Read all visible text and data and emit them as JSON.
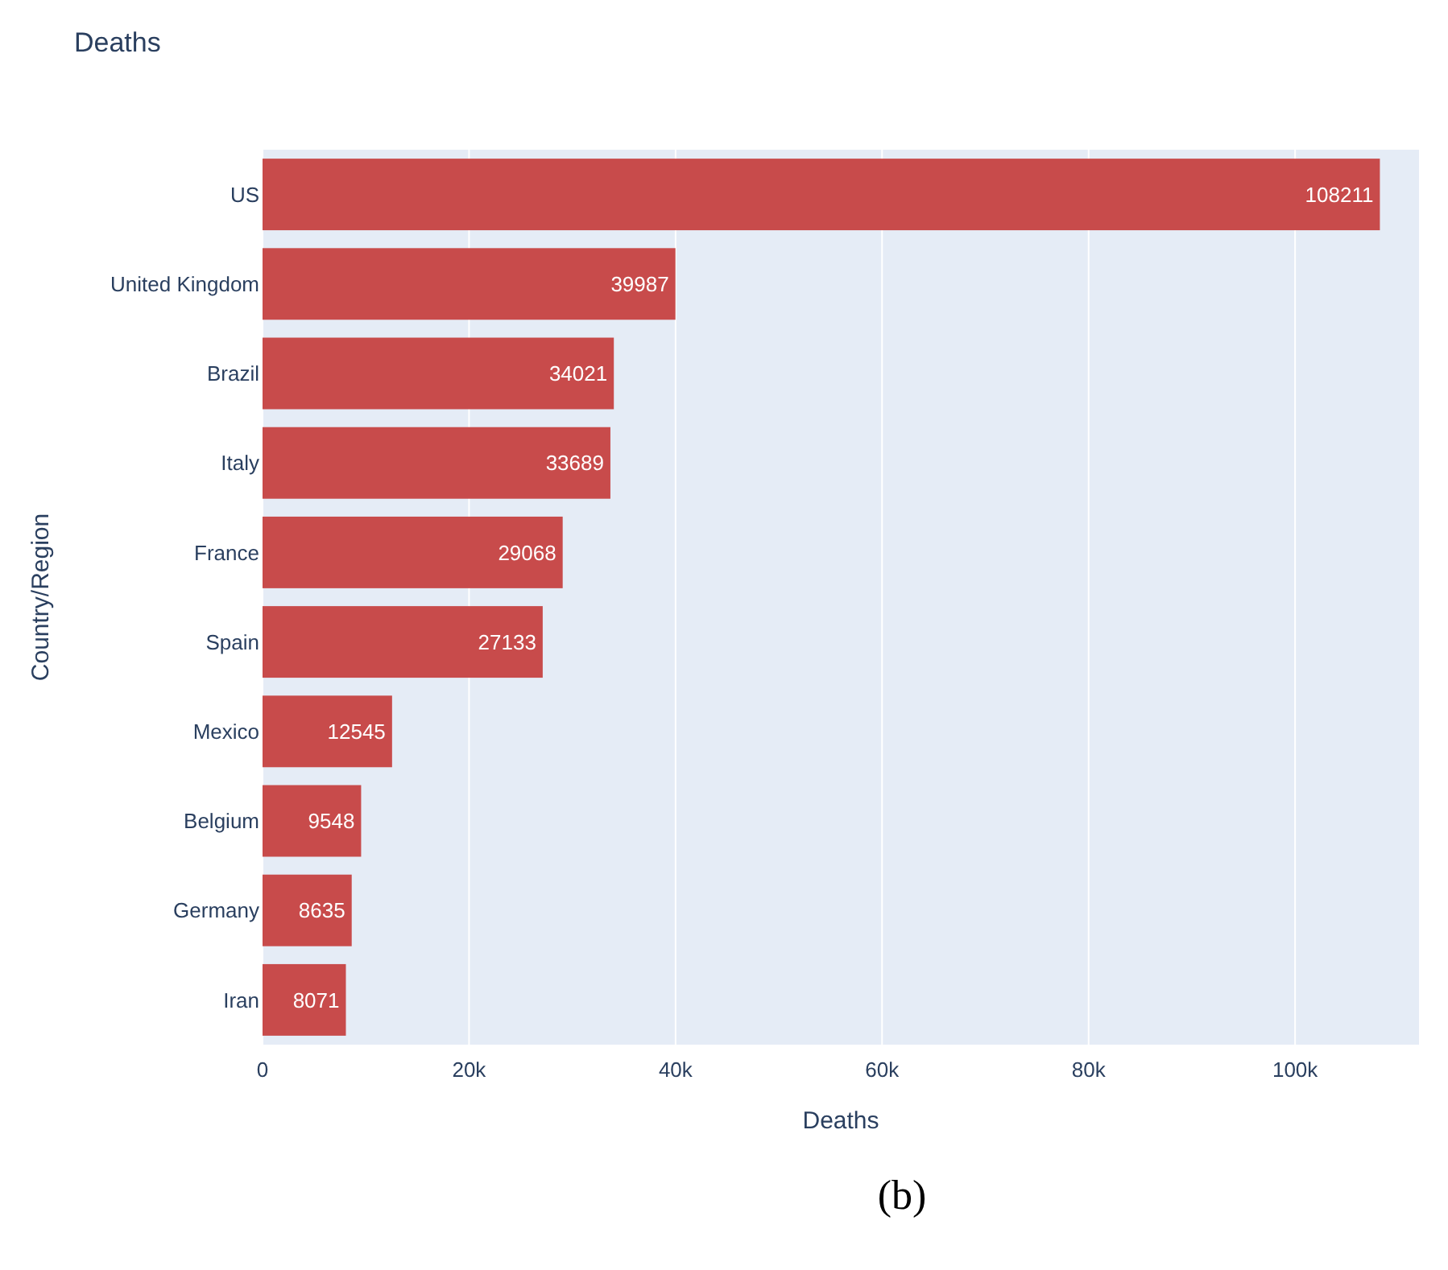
{
  "chart_data": {
    "type": "bar",
    "title": "Deaths",
    "xlabel": "Deaths",
    "ylabel": "Country/Region",
    "orientation": "horizontal",
    "categories": [
      "US",
      "United Kingdom",
      "Brazil",
      "Italy",
      "France",
      "Spain",
      "Mexico",
      "Belgium",
      "Germany",
      "Iran"
    ],
    "values": [
      108211,
      39987,
      34021,
      33689,
      29068,
      27133,
      12545,
      9548,
      8635,
      8071
    ],
    "color": "#c84b4b",
    "data_labels": true,
    "grid": "x",
    "xlim": [
      0,
      112000
    ],
    "xticks": [
      0,
      {
        "value": 20000,
        "label": "20k"
      },
      {
        "value": 40000,
        "label": "40k"
      },
      {
        "value": 60000,
        "label": "60k"
      },
      {
        "value": 80000,
        "label": "80k"
      },
      {
        "value": 100000,
        "label": "100k"
      }
    ],
    "annotations": [
      "(b)"
    ]
  }
}
